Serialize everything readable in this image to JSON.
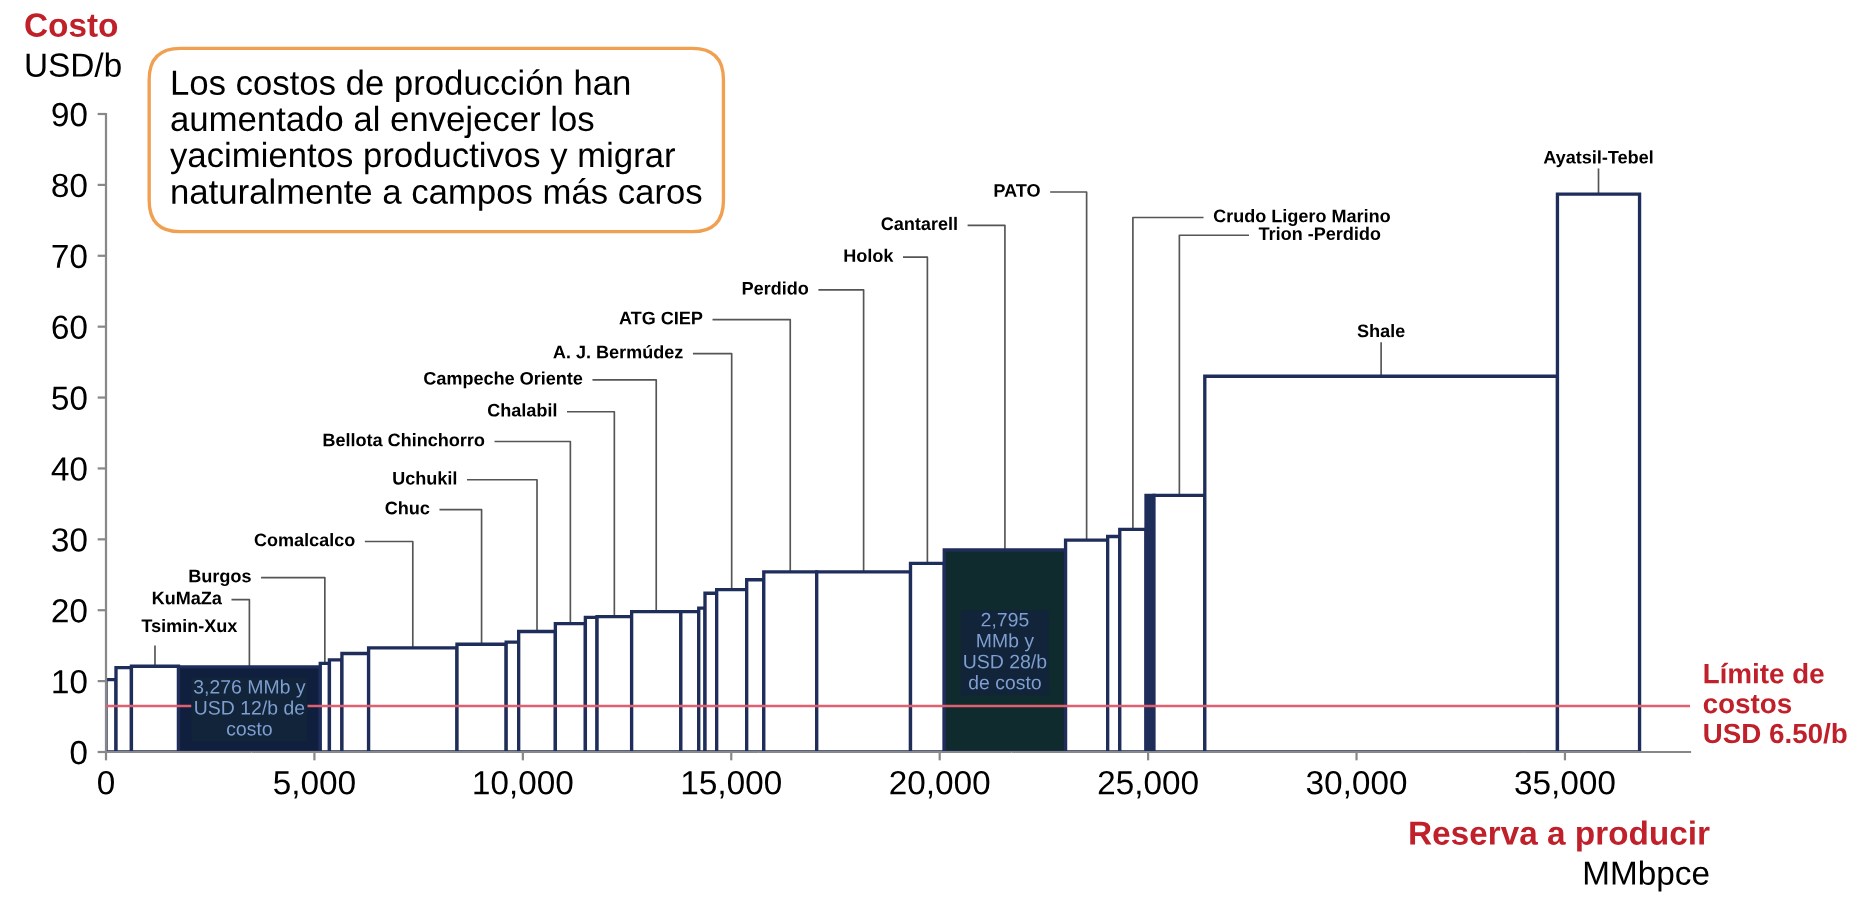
{
  "chart_data": {
    "type": "bar",
    "xlabel": "Reserva a producir\nMMbpce",
    "ylabel": "Costo\nUSD/b",
    "x": [
      120,
      425,
      1175,
      3440,
      5250,
      5510,
      5980,
      7360,
      9010,
      9750,
      10340,
      11140,
      11640,
      12195,
      13200,
      14005,
      14295,
      14510,
      15010,
      15575,
      16415,
      18175,
      19705,
      21565,
      23525,
      24175,
      24635,
      25045,
      25750,
      30590,
      35805
    ],
    "series": [
      {
        "values": [
          10.2,
          11.9,
          12.1,
          12,
          12.5,
          13,
          13.9,
          14.7,
          15.2,
          15.5,
          17,
          18.1,
          19,
          19.1,
          19.8,
          19.8,
          20.3,
          22.4,
          22.9,
          24.3,
          25.4,
          25.4,
          26.6,
          28.5,
          29.9,
          30.4,
          31.4,
          36.2,
          36.2,
          53,
          78.7
        ],
        "colors": [
          "#ffffff",
          "#ffffff",
          "#ffffff",
          "#0f1f3d",
          "#ffffff",
          "#ffffff",
          "#ffffff",
          "#ffffff",
          "#ffffff",
          "#ffffff",
          "#ffffff",
          "#ffffff",
          "#ffffff",
          "#ffffff",
          "#ffffff",
          "#ffffff",
          "#ffffff",
          "#ffffff",
          "#ffffff",
          "#ffffff",
          "#ffffff",
          "#ffffff",
          "#ffffff",
          "#0f2b2e",
          "#ffffff",
          "#ffffff",
          "#ffffff",
          "#1f2d5a",
          "#ffffff",
          "#ffffff",
          "#ffffff"
        ]
      }
    ],
    "xlim": [
      0,
      38000
    ],
    "xticks": [
      0,
      {
        "value": 5000,
        "label": "5,000"
      },
      {
        "value": 10000,
        "label": "10,000"
      },
      {
        "value": 15000,
        "label": "15,000"
      },
      {
        "value": 20000,
        "label": "20,000"
      },
      {
        "value": 25000,
        "label": "25,000"
      },
      {
        "value": 30000,
        "label": "30,000"
      },
      {
        "value": 35000,
        "label": "35,000"
      }
    ],
    "ylim": [
      0,
      90
    ],
    "yticks": [
      0,
      10,
      20,
      30,
      40,
      50,
      60,
      70,
      80,
      90
    ],
    "grid": false,
    "ref_lines": [
      {
        "axis": "y",
        "value": 6.5,
        "label": "Límite de\ncostos\nUSD 6.50/b",
        "color": "#e06070"
      }
    ],
    "annotations": [
      "Los costos de producción han\naumentado al envejecer los\nyacimientos productivos y migrar\nnaturalmente a campos más caros",
      "3,276 MMb y\nUSD 12/b de\ncosto",
      "2,795\nMMb y\nUSD 28/b\nde costo",
      {
        "text": "Tsimin-Xux",
        "x": 1175,
        "y": 12.1
      },
      {
        "text": "KuMaZa",
        "x": 3440,
        "y": 12
      },
      {
        "text": "Burgos",
        "x": 5250,
        "y": 12.5
      },
      {
        "text": "Comalcalco",
        "x": 7360,
        "y": 14.7
      },
      {
        "text": "Chuc",
        "x": 9010,
        "y": 15.2
      },
      {
        "text": "Uchukil",
        "x": 10340,
        "y": 17
      },
      {
        "text": "Bellota Chinchorro",
        "x": 11140,
        "y": 18.1
      },
      {
        "text": "Chalabil",
        "x": 12195,
        "y": 19.1
      },
      {
        "text": "Campeche Oriente",
        "x": 13200,
        "y": 19.8
      },
      {
        "text": "A. J. Bermúdez",
        "x": 15010,
        "y": 22.9
      },
      {
        "text": "ATG CIEP",
        "x": 16415,
        "y": 25.4
      },
      {
        "text": "Perdido",
        "x": 18175,
        "y": 25.4
      },
      {
        "text": "Holok",
        "x": 19705,
        "y": 26.6
      },
      {
        "text": "Cantarell",
        "x": 21565,
        "y": 28.5
      },
      {
        "text": "PATO",
        "x": 23525,
        "y": 29.9
      },
      {
        "text": "Crudo Ligero Marino",
        "x": 24635,
        "y": 31.4
      },
      {
        "text": "Trion -Perdido",
        "x": 25750,
        "y": 36.2
      },
      {
        "text": "Shale",
        "x": 30590,
        "y": 53
      },
      {
        "text": "Ayatsil-Tebel",
        "x": 35805,
        "y": 78.7
      }
    ]
  }
}
